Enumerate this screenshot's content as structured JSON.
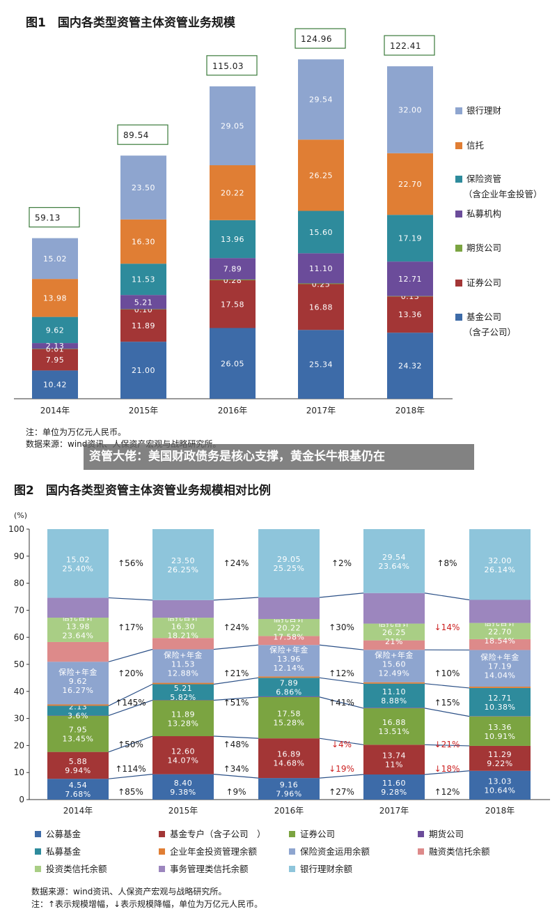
{
  "banner": "资管大佬：美国财政债务是核心支撑，黄金长牛根基仍在",
  "chart_data": [
    {
      "type": "bar",
      "stacked": true,
      "title": "图1　国内各类型资管主体资管业务规模",
      "categories": [
        "2014年",
        "2015年",
        "2016年",
        "2017年",
        "2018年"
      ],
      "totals": [
        "59.13",
        "89.54",
        "115.03",
        "124.96",
        "122.41"
      ],
      "ylim": [
        0,
        130
      ],
      "series": [
        {
          "name": "基金公司",
          "name2": "（含子公司）",
          "color": "#3D6BA8",
          "values": [
            10.42,
            21.0,
            26.05,
            25.34,
            24.32
          ],
          "labels": [
            "10.42",
            "21.00",
            "26.05",
            "25.34",
            "24.32"
          ]
        },
        {
          "name": "证券公司",
          "color": "#A33636",
          "values": [
            7.95,
            11.89,
            17.58,
            16.88,
            13.36
          ],
          "labels": [
            "7.95",
            "11.89",
            "17.58",
            "16.88",
            "13.36"
          ]
        },
        {
          "name": "期货公司",
          "color": "#7BA441",
          "values": [
            0.01,
            0.1,
            0.28,
            0.25,
            0.13
          ],
          "labels": [
            "0.01",
            "0.10",
            "0.28",
            "0.25",
            "0.13"
          ]
        },
        {
          "name": "私募机构",
          "color": "#6B4C9A",
          "values": [
            2.13,
            5.21,
            7.89,
            11.1,
            12.71
          ],
          "labels": [
            "2.13",
            "5.21",
            "7.89",
            "11.10",
            "12.71"
          ]
        },
        {
          "name": "保险资管",
          "name2": "（含企业年金投管）",
          "color": "#2E8B9C",
          "values": [
            9.62,
            11.53,
            13.96,
            15.6,
            17.19
          ],
          "labels": [
            "9.62",
            "11.53",
            "13.96",
            "15.60",
            "17.19"
          ]
        },
        {
          "name": "信托",
          "color": "#E07E34",
          "values": [
            13.98,
            16.3,
            20.22,
            26.25,
            22.7
          ],
          "labels": [
            "13.98",
            "16.30",
            "20.22",
            "26.25",
            "22.70"
          ]
        },
        {
          "name": "银行理财",
          "color": "#8EA5CF",
          "values": [
            15.02,
            23.5,
            29.05,
            29.54,
            32.0
          ],
          "labels": [
            "15.02",
            "23.50",
            "29.05",
            "29.54",
            "32.00"
          ]
        }
      ],
      "notes": [
        "注：单位为万亿元人民币。",
        "数据来源：wind资讯、人保资产宏观与战略研究所。"
      ]
    },
    {
      "type": "bar",
      "stacked": true,
      "percent": true,
      "title": "图2　国内各类型资管主体资管业务规模相对比例",
      "ylabel": "(%)",
      "yticks": [
        "0",
        "10",
        "20",
        "30",
        "40",
        "50",
        "60",
        "70",
        "80",
        "90",
        "100"
      ],
      "ylim": [
        0,
        100
      ],
      "categories": [
        "2014年",
        "2015年",
        "2016年",
        "2017年",
        "2018年"
      ],
      "segments": [
        {
          "name": "公募基金",
          "color": "#3D6BA8",
          "pct": [
            7.68,
            9.38,
            7.96,
            9.28,
            10.64
          ],
          "labels": [
            [
              "4.54",
              "7.68%"
            ],
            [
              "8.40",
              "9.38%"
            ],
            [
              "9.16",
              "7.96%"
            ],
            [
              "11.60",
              "9.28%"
            ],
            [
              "13.03",
              "10.64%"
            ]
          ]
        },
        {
          "name": "基金专户（含子公司　）",
          "color": "#A33636",
          "pct": [
            9.94,
            14.07,
            14.68,
            11.0,
            9.22
          ],
          "labels": [
            [
              "5.88",
              "9.94%"
            ],
            [
              "12.60",
              "14.07%"
            ],
            [
              "16.89",
              "14.68%"
            ],
            [
              "13.74",
              "11%"
            ],
            [
              "11.29",
              "9.22%"
            ]
          ]
        },
        {
          "name": "证券公司",
          "color": "#7BA441",
          "pct": [
            13.45,
            13.28,
            15.28,
            13.51,
            10.91
          ],
          "labels": [
            [
              "7.95",
              "13.45%"
            ],
            [
              "11.89",
              "13.28%"
            ],
            [
              "17.58",
              "15.28%"
            ],
            [
              "16.88",
              "13.51%"
            ],
            [
              "13.36",
              "10.91%"
            ]
          ]
        },
        {
          "name": "期货公司",
          "color": "#6B4C9A",
          "pct": [
            0.02,
            0.11,
            0.24,
            0.2,
            0.11
          ],
          "labels": [
            [
              "",
              ""
            ],
            [
              "",
              ""
            ],
            [
              "",
              ""
            ],
            [
              "",
              ""
            ],
            [
              "",
              ""
            ]
          ]
        },
        {
          "name": "私募基金",
          "color": "#2E8B9C",
          "pct": [
            3.6,
            5.82,
            6.86,
            8.88,
            10.38
          ],
          "labels": [
            [
              "2.13",
              "3.6%"
            ],
            [
              "5.21",
              "5.82%"
            ],
            [
              "7.89",
              "6.86%"
            ],
            [
              "11.10",
              "8.88%"
            ],
            [
              "12.71",
              "10.38%"
            ]
          ]
        },
        {
          "name": "企业年金投资管理余额",
          "color": "#E07E34",
          "pct": [
            0.5,
            0.5,
            0.5,
            0.5,
            0.5
          ],
          "labels": [
            [
              "",
              ""
            ],
            [
              "",
              ""
            ],
            [
              "",
              ""
            ],
            [
              "",
              ""
            ],
            [
              "",
              ""
            ]
          ]
        },
        {
          "name": "保险资金运用余额",
          "color": "#8EA5CF",
          "pct": [
            15.77,
            12.38,
            11.64,
            11.99,
            13.54
          ],
          "labels": [
            [
              "保险+年金",
              "9.62",
              "16.27%"
            ],
            [
              "保险+年金",
              "11.53",
              "12.88%"
            ],
            [
              "保险+年金",
              "13.96",
              "12.14%"
            ],
            [
              "保险+年金",
              "15.60",
              "12.49%"
            ],
            [
              "保险+年金",
              "17.19",
              "14.04%"
            ]
          ]
        },
        {
          "name": "融资类信托余额",
          "color": "#DD8A8A",
          "pct": [
            7.3,
            4.2,
            3.3,
            3.5,
            4.0
          ],
          "labels": [
            [
              "",
              ""
            ],
            [
              "",
              ""
            ],
            [
              "",
              ""
            ],
            [
              "",
              ""
            ],
            [
              "",
              ""
            ]
          ]
        },
        {
          "name": "投资类信托余额",
          "color": "#A9CE85",
          "pct": [
            9.0,
            7.5,
            6.3,
            6.2,
            6.0
          ],
          "labels": [
            [
              "信托合计",
              "13.98",
              "23.64%"
            ],
            [
              "信托合计",
              "16.30",
              "18.21%"
            ],
            [
              "信托合计",
              "20.22",
              "17.58%"
            ],
            [
              "信托合计",
              "26.25",
              "21%"
            ],
            [
              "信托合计",
              "22.70",
              "18.54%"
            ]
          ]
        },
        {
          "name": "事务管理类信托余额",
          "color": "#9C86BE",
          "pct": [
            7.34,
            6.51,
            7.98,
            11.3,
            8.54
          ],
          "labels": [
            [
              "",
              ""
            ],
            [
              "",
              ""
            ],
            [
              "",
              ""
            ],
            [
              "",
              ""
            ],
            [
              "",
              ""
            ]
          ]
        },
        {
          "name": "银行理财余额",
          "color": "#8EC5DB",
          "pct": [
            25.4,
            26.25,
            25.25,
            23.64,
            26.14
          ],
          "labels": [
            [
              "15.02",
              "25.40%"
            ],
            [
              "23.50",
              "26.25%"
            ],
            [
              "29.05",
              "25.25%"
            ],
            [
              "29.54",
              "23.64%"
            ],
            [
              "32.00",
              "26.14%"
            ]
          ]
        }
      ],
      "changes": [
        {
          "arrow": "↑",
          "dir": "up",
          "values": [
            "85%",
            "9%",
            "27%",
            "12%"
          ],
          "at": 0
        },
        {
          "arrow": "↑",
          "dir": "up",
          "values": [
            "114%",
            "34%",
            "↓19%",
            "↓18%"
          ],
          "at": 1
        },
        {
          "arrow": "↑",
          "dir": "up",
          "values": [
            "50%",
            "48%",
            "↓4%",
            "↓21%"
          ],
          "at": 2
        },
        {
          "arrow": "↑",
          "dir": "up",
          "values": [
            "145%",
            "51%",
            "41%",
            "15%"
          ],
          "at": 4
        },
        {
          "arrow": "↑",
          "dir": "up",
          "values": [
            "20%",
            "21%",
            "12%",
            "10%"
          ],
          "at": 6
        },
        {
          "arrow": "↑",
          "dir": "up",
          "values": [
            "17%",
            "24%",
            "30%",
            "↓14%"
          ],
          "at": 8
        },
        {
          "arrow": "↑",
          "dir": "up",
          "values": [
            "56%",
            "24%",
            "2%",
            "8%"
          ],
          "at": 10
        }
      ],
      "notes": [
        "数据来源：wind资讯、人保资产宏观与战略研究所。",
        "注：↑表示规模增幅，↓表示规模降幅，单位为万亿元人民币。"
      ]
    }
  ]
}
